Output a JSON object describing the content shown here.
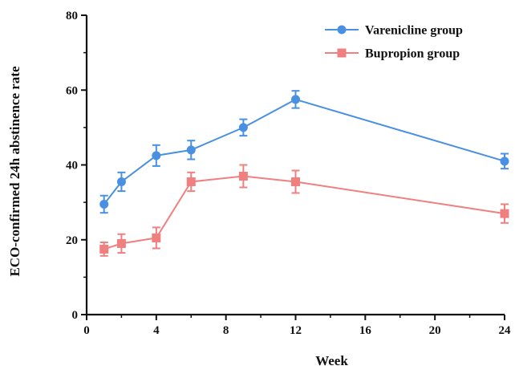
{
  "chart_data": {
    "type": "line",
    "title": "",
    "xlabel": "Week",
    "ylabel": "ECO-confirmed 24h abstinence rate",
    "xlim": [
      0,
      24
    ],
    "ylim": [
      0,
      80
    ],
    "xticks": [
      0,
      4,
      8,
      12,
      16,
      20,
      24
    ],
    "yticks": [
      0,
      20,
      40,
      60,
      80
    ],
    "grid": false,
    "legend_position": "top-right",
    "series": [
      {
        "name": "Varenicline group",
        "color": "#4a90e2",
        "marker": "circle",
        "x": [
          1,
          2,
          4,
          6,
          9,
          12,
          24
        ],
        "y": [
          29.5,
          35.5,
          42.5,
          44,
          50,
          57.5,
          41
        ],
        "err": [
          2.3,
          2.5,
          2.8,
          2.5,
          2.2,
          2.3,
          2
        ]
      },
      {
        "name": "Bupropion group",
        "color": "#f07f80",
        "marker": "square",
        "x": [
          1,
          2,
          4,
          6,
          9,
          12,
          24
        ],
        "y": [
          17.5,
          19,
          20.5,
          35.5,
          37,
          35.5,
          27
        ],
        "err": [
          1.8,
          2.5,
          2.8,
          2.5,
          3,
          3,
          2.5
        ]
      }
    ]
  }
}
